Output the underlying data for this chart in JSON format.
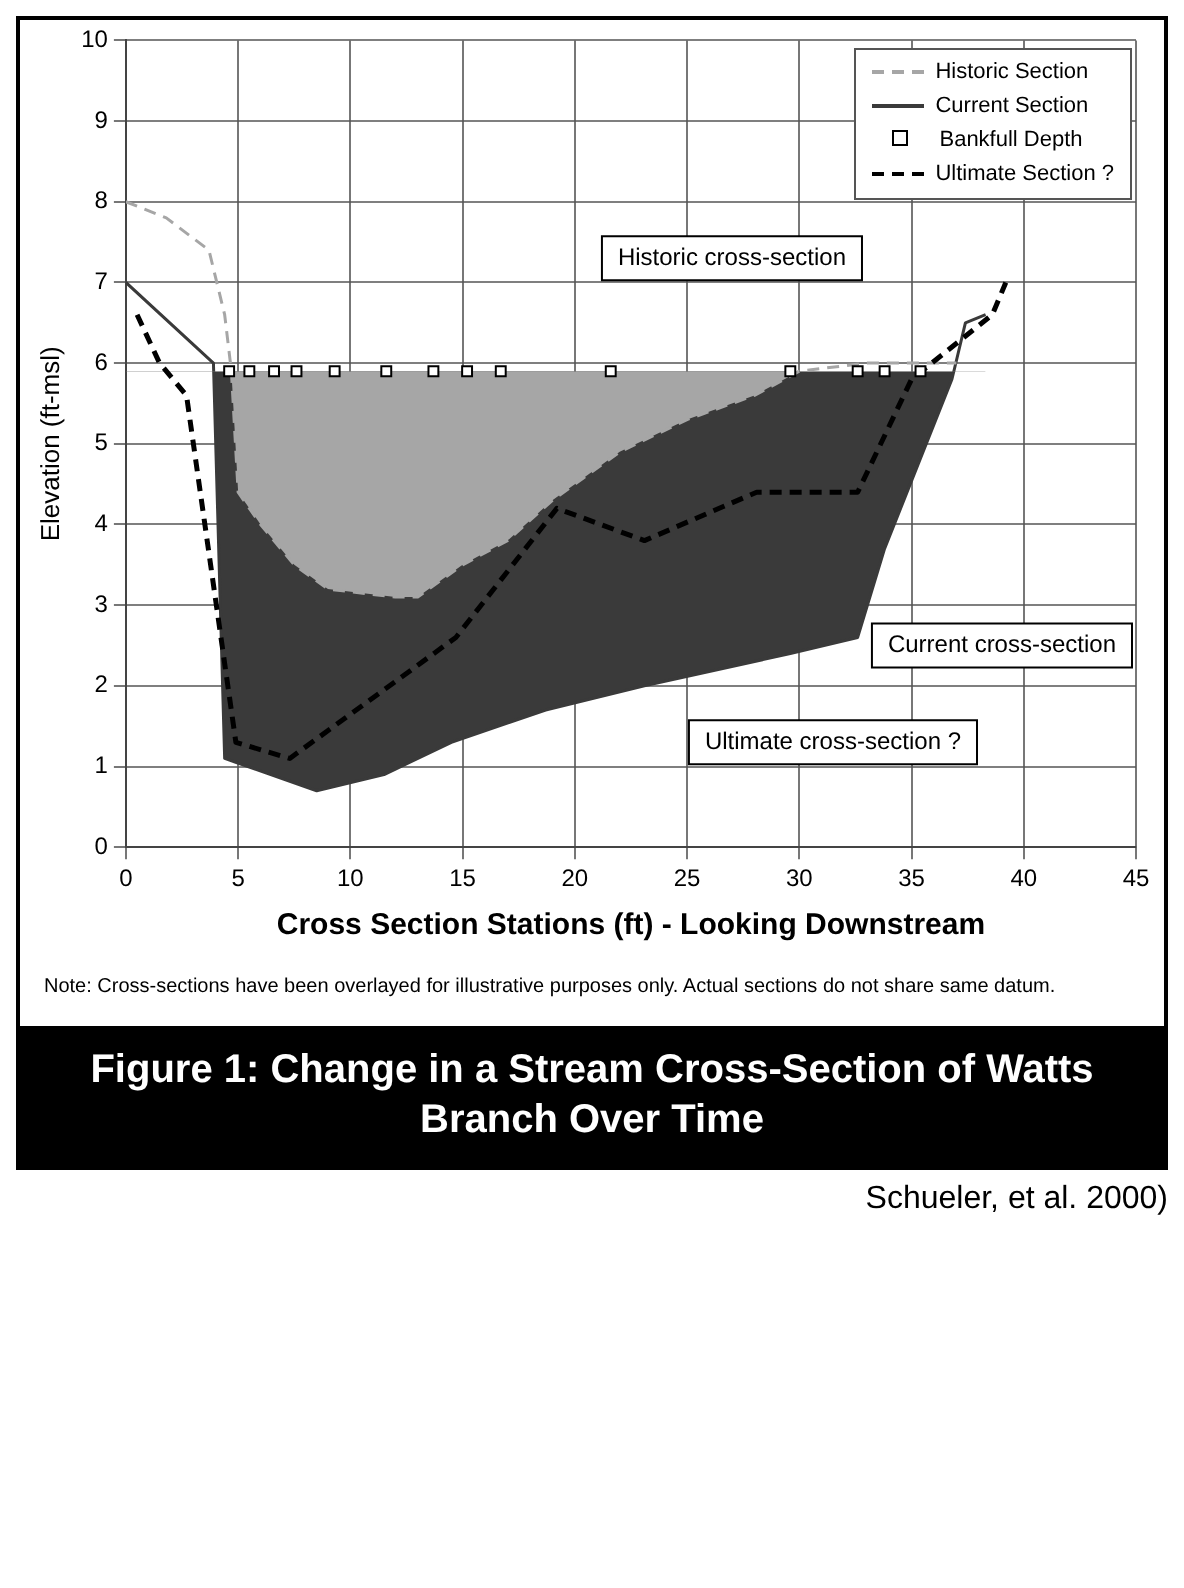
{
  "chart_data": {
    "type": "area",
    "title": "Figure 1: Change in a Stream Cross-Section of Watts Branch Over Time",
    "xlabel": "Cross Section Stations (ft) - Looking Downstream",
    "ylabel": "Elevation (ft-msl)",
    "xlim": [
      0,
      45
    ],
    "xticks": [
      0,
      5,
      10,
      15,
      20,
      25,
      30,
      35,
      40,
      45
    ],
    "ylim": [
      0,
      10
    ],
    "yticks": [
      0,
      1,
      2,
      3,
      4,
      5,
      6,
      7,
      8,
      9,
      10
    ],
    "grid": true,
    "legend": "top right",
    "series": [
      {
        "name": "Historic Section",
        "color": "#a6a6a6",
        "line_style": "dashed",
        "marker": "none",
        "x": [
          0,
          1.8,
          3.7,
          4.4,
          4.7,
          5,
          6,
          7.5,
          9,
          12,
          13,
          15,
          17,
          19,
          20,
          22,
          25,
          28,
          30,
          33,
          36,
          37
        ],
        "values": [
          8,
          7.8,
          7.4,
          6.6,
          5.9,
          4.4,
          4,
          3.5,
          3.2,
          3.1,
          3.1,
          3.5,
          3.8,
          4.3,
          4.5,
          4.9,
          5.3,
          5.6,
          5.9,
          6,
          6,
          6
        ]
      },
      {
        "name": "Current Section",
        "color": "#3a3a3a",
        "line_style": "solid",
        "marker": "none",
        "x": [
          0,
          3.9,
          4.4,
          8.5,
          11.5,
          14.5,
          18.7,
          23.1,
          29.6,
          32.6,
          33.8,
          36.8,
          37.4,
          38.3
        ],
        "values": [
          7,
          6,
          1.1,
          0.7,
          0.9,
          1.3,
          1.7,
          2,
          2.4,
          2.6,
          3.7,
          5.8,
          6.5,
          6.6
        ]
      },
      {
        "name": "Bankfull Depth",
        "type": "scatter",
        "color": "#000000",
        "marker": "square",
        "x": [
          4.6,
          5.5,
          6.6,
          7.6,
          9.3,
          11.6,
          13.7,
          15.2,
          16.7,
          21.6,
          29.6,
          32.6,
          33.8,
          35.4
        ],
        "values": [
          5.9,
          5.9,
          5.9,
          5.9,
          5.9,
          5.9,
          5.9,
          5.9,
          5.9,
          5.9,
          5.9,
          5.9,
          5.9,
          5.9
        ]
      },
      {
        "name": "Ultimate Section ?",
        "type": "line",
        "color": "#000000",
        "line_style": "dashed",
        "marker": "none",
        "x": [
          0.5,
          1.5,
          2.7,
          4.9,
          7.3,
          14.7,
          19.2,
          23.1,
          28.1,
          32.6,
          35,
          38.6,
          39.2
        ],
        "values": [
          6.6,
          6,
          5.6,
          1.3,
          1.1,
          2.6,
          4.2,
          3.8,
          4.4,
          4.4,
          5.8,
          6.6,
          7
        ]
      }
    ],
    "annotations": [
      "Historic cross-section",
      "Current cross-section",
      "Ultimate cross-section ?",
      "Note: Cross-sections have been overlayed for illustrative purposes only.  Actual sections do not share same datum.",
      "Schueler, et al. 2000)"
    ]
  }
}
